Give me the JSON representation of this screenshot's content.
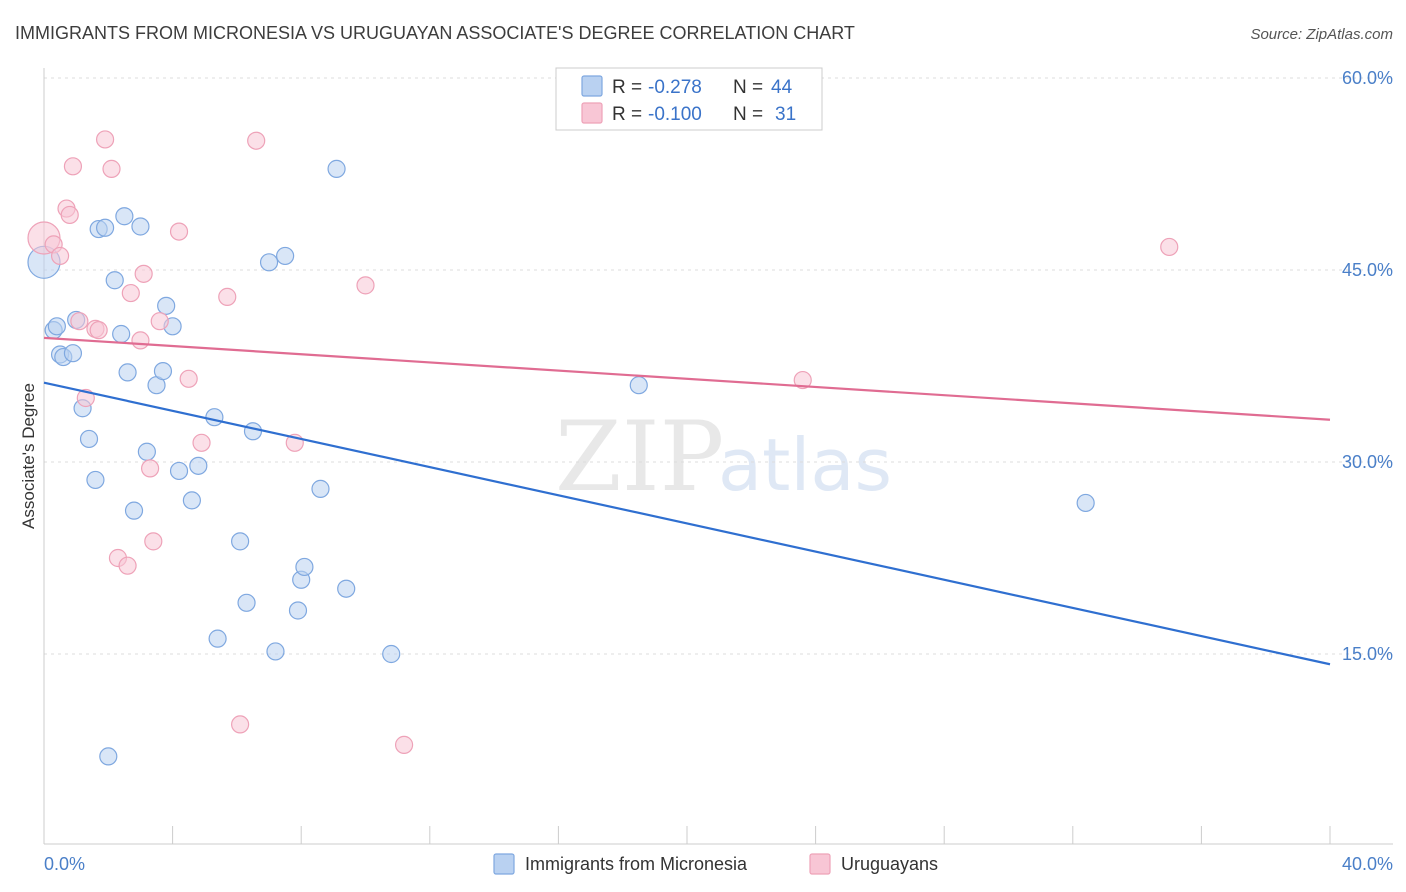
{
  "chart_data": {
    "type": "scatter",
    "title": "IMMIGRANTS FROM MICRONESIA VS URUGUAYAN ASSOCIATE'S DEGREE CORRELATION CHART",
    "source": "Source: ZipAtlas.com",
    "xlabel": "",
    "ylabel": "Associate's Degree",
    "xlim": [
      0,
      40
    ],
    "ylim": [
      0,
      62
    ],
    "x_tick_labels": [
      "0.0%",
      "40.0%"
    ],
    "y_ticks": [
      {
        "value": 15,
        "label": "15.0%"
      },
      {
        "value": 30,
        "label": "30.0%"
      },
      {
        "value": 45,
        "label": "45.0%"
      },
      {
        "value": 60,
        "label": "60.0%"
      }
    ],
    "watermark": {
      "zip": "ZIP",
      "atlas": "atlas"
    },
    "legend_stats": [
      {
        "r_label": "R =",
        "r_value": "-0.278",
        "n_label": "N =",
        "n_value": "44"
      },
      {
        "r_label": "R =",
        "r_value": "-0.100",
        "n_label": "N =",
        "n_value": "31"
      }
    ],
    "series": [
      {
        "name": "Immigrants from Micronesia",
        "color": "#7fa8e0",
        "fill": "#b9d1f1",
        "line_color": "#2f6fd0",
        "trend": {
          "x": [
            0,
            40
          ],
          "y": [
            36.2,
            14.2
          ]
        },
        "points": [
          [
            0.0,
            45.6
          ],
          [
            0.3,
            40.3
          ],
          [
            0.4,
            40.6
          ],
          [
            0.5,
            38.4
          ],
          [
            0.6,
            38.2
          ],
          [
            0.9,
            38.5
          ],
          [
            1.0,
            41.1
          ],
          [
            1.2,
            34.2
          ],
          [
            1.4,
            31.8
          ],
          [
            1.6,
            28.6
          ],
          [
            1.7,
            48.2
          ],
          [
            1.9,
            48.3
          ],
          [
            2.2,
            44.2
          ],
          [
            2.4,
            40.0
          ],
          [
            2.5,
            49.2
          ],
          [
            2.6,
            37.0
          ],
          [
            2.8,
            26.2
          ],
          [
            3.0,
            48.4
          ],
          [
            3.2,
            30.8
          ],
          [
            3.5,
            36.0
          ],
          [
            3.7,
            37.1
          ],
          [
            3.8,
            42.2
          ],
          [
            4.0,
            40.6
          ],
          [
            4.2,
            29.3
          ],
          [
            4.6,
            27.0
          ],
          [
            4.8,
            29.7
          ],
          [
            5.3,
            33.5
          ],
          [
            5.4,
            16.2
          ],
          [
            6.1,
            23.8
          ],
          [
            6.3,
            19.0
          ],
          [
            6.5,
            32.4
          ],
          [
            7.0,
            45.6
          ],
          [
            7.2,
            15.2
          ],
          [
            7.5,
            46.1
          ],
          [
            7.9,
            18.4
          ],
          [
            8.0,
            20.8
          ],
          [
            8.1,
            21.8
          ],
          [
            8.6,
            27.9
          ],
          [
            9.1,
            52.9
          ],
          [
            9.4,
            20.1
          ],
          [
            10.8,
            15.0
          ],
          [
            18.5,
            36.0
          ],
          [
            32.4,
            26.8
          ],
          [
            2.0,
            7.0
          ]
        ]
      },
      {
        "name": "Uruguayans",
        "color": "#eea2b8",
        "fill": "#f8c6d5",
        "line_color": "#e06c92",
        "trend": {
          "x": [
            0,
            40
          ],
          "y": [
            39.7,
            33.3
          ]
        },
        "points": [
          [
            0.0,
            47.5
          ],
          [
            0.3,
            47.0
          ],
          [
            0.5,
            46.1
          ],
          [
            0.7,
            49.8
          ],
          [
            0.8,
            49.3
          ],
          [
            0.9,
            53.1
          ],
          [
            1.1,
            41.0
          ],
          [
            1.3,
            35.0
          ],
          [
            1.6,
            40.4
          ],
          [
            1.7,
            40.3
          ],
          [
            1.9,
            55.2
          ],
          [
            2.1,
            52.9
          ],
          [
            2.3,
            22.5
          ],
          [
            2.6,
            21.9
          ],
          [
            2.7,
            43.2
          ],
          [
            3.0,
            39.5
          ],
          [
            3.1,
            44.7
          ],
          [
            3.3,
            29.5
          ],
          [
            3.4,
            23.8
          ],
          [
            3.6,
            41.0
          ],
          [
            4.2,
            48.0
          ],
          [
            4.5,
            36.5
          ],
          [
            4.9,
            31.5
          ],
          [
            5.7,
            42.9
          ],
          [
            6.1,
            9.5
          ],
          [
            6.6,
            55.1
          ],
          [
            7.8,
            31.5
          ],
          [
            10.0,
            43.8
          ],
          [
            11.2,
            7.9
          ],
          [
            23.6,
            36.4
          ],
          [
            35.0,
            46.8
          ]
        ]
      }
    ]
  }
}
